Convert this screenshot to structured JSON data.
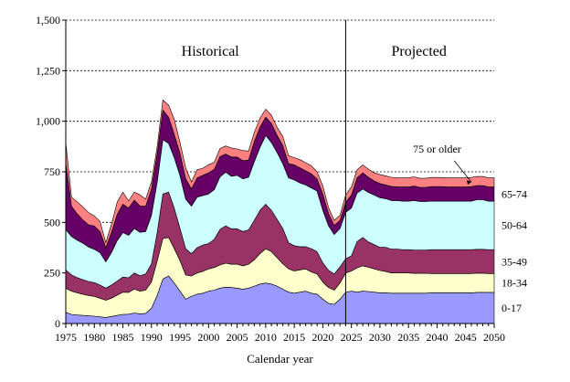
{
  "chart_data": {
    "type": "area",
    "stacked": true,
    "title": "",
    "xlabel": "Calendar year",
    "ylabel": "",
    "xlim": [
      1975,
      2050
    ],
    "ylim": [
      0,
      1500
    ],
    "grid": "horizontal dashed",
    "x_ticks": [
      1975,
      1980,
      1985,
      1990,
      1995,
      2000,
      2005,
      2010,
      2015,
      2020,
      2025,
      2030,
      2035,
      2040,
      2045,
      2050
    ],
    "y_ticks": [
      0,
      250,
      500,
      750,
      1000,
      1250,
      1500
    ],
    "y_tick_labels": [
      "0",
      "250",
      "500",
      "750",
      "1,000",
      "1,250",
      "1,500"
    ],
    "divider_year": 2024,
    "regions": [
      {
        "label": "Historical"
      },
      {
        "label": "Projected"
      }
    ],
    "x": [
      1975,
      1976,
      1977,
      1978,
      1979,
      1980,
      1981,
      1982,
      1983,
      1984,
      1985,
      1986,
      1987,
      1988,
      1989,
      1990,
      1991,
      1992,
      1993,
      1994,
      1995,
      1996,
      1997,
      1998,
      1999,
      2000,
      2001,
      2002,
      2003,
      2004,
      2005,
      2006,
      2007,
      2008,
      2009,
      2010,
      2011,
      2012,
      2013,
      2014,
      2015,
      2016,
      2017,
      2018,
      2019,
      2020,
      2021,
      2022,
      2023,
      2024,
      2025,
      2026,
      2027,
      2028,
      2029,
      2030,
      2031,
      2032,
      2033,
      2034,
      2035,
      2036,
      2037,
      2038,
      2039,
      2040,
      2041,
      2042,
      2043,
      2044,
      2045,
      2046,
      2047,
      2048,
      2049,
      2050
    ],
    "series": [
      {
        "name": "0-17",
        "color": "#9999ff",
        "values": [
          55,
          45,
          42,
          40,
          38,
          36,
          33,
          30,
          35,
          40,
          45,
          46,
          52,
          48,
          50,
          75,
          140,
          220,
          235,
          200,
          160,
          120,
          135,
          145,
          150,
          160,
          165,
          175,
          180,
          178,
          175,
          170,
          175,
          185,
          195,
          200,
          195,
          185,
          170,
          155,
          150,
          155,
          160,
          150,
          145,
          120,
          100,
          95,
          120,
          155,
          160,
          155,
          160,
          158,
          155,
          152,
          152,
          150,
          150,
          150,
          150,
          150,
          150,
          150,
          152,
          152,
          152,
          152,
          152,
          152,
          152,
          152,
          154,
          154,
          154,
          154
        ]
      },
      {
        "name": "18-34",
        "color": "#ffffcc",
        "values": [
          120,
          115,
          110,
          105,
          100,
          98,
          92,
          85,
          90,
          100,
          110,
          108,
          118,
          112,
          115,
          130,
          170,
          200,
          190,
          170,
          150,
          120,
          100,
          105,
          108,
          110,
          112,
          115,
          118,
          115,
          118,
          115,
          118,
          130,
          150,
          170,
          160,
          140,
          125,
          115,
          110,
          110,
          110,
          105,
          100,
          85,
          78,
          70,
          80,
          95,
          100,
          120,
          125,
          120,
          115,
          110,
          105,
          100,
          100,
          100,
          100,
          98,
          98,
          98,
          95,
          95,
          95,
          95,
          95,
          95,
          95,
          95,
          95,
          95,
          93,
          93
        ]
      },
      {
        "name": "35-49",
        "color": "#993366",
        "values": [
          90,
          80,
          75,
          72,
          70,
          68,
          65,
          60,
          65,
          70,
          75,
          72,
          80,
          76,
          80,
          90,
          140,
          220,
          225,
          200,
          160,
          130,
          110,
          125,
          130,
          125,
          140,
          175,
          185,
          175,
          175,
          170,
          170,
          195,
          215,
          220,
          205,
          190,
          175,
          130,
          125,
          115,
          110,
          115,
          110,
          95,
          85,
          80,
          80,
          70,
          75,
          130,
          140,
          125,
          120,
          115,
          120,
          118,
          118,
          115,
          115,
          115,
          115,
          115,
          118,
          118,
          118,
          118,
          118,
          118,
          118,
          118,
          118,
          118,
          118,
          118
        ]
      },
      {
        "name": "50-64",
        "color": "#ccffff",
        "values": [
          200,
          190,
          185,
          180,
          170,
          165,
          160,
          130,
          160,
          200,
          220,
          210,
          220,
          215,
          210,
          240,
          250,
          270,
          240,
          250,
          260,
          245,
          235,
          250,
          245,
          245,
          245,
          260,
          265,
          260,
          265,
          260,
          260,
          290,
          310,
          340,
          335,
          330,
          320,
          320,
          325,
          315,
          305,
          300,
          300,
          260,
          220,
          195,
          190,
          230,
          235,
          240,
          240,
          245,
          245,
          245,
          240,
          240,
          240,
          240,
          240,
          245,
          240,
          240,
          240,
          240,
          240,
          240,
          240,
          240,
          240,
          240,
          245,
          245,
          240,
          240
        ]
      },
      {
        "name": "65-74",
        "color": "#660066",
        "values": [
          330,
          150,
          130,
          115,
          110,
          115,
          105,
          70,
          100,
          130,
          140,
          135,
          140,
          130,
          125,
          130,
          140,
          145,
          130,
          115,
          110,
          100,
          85,
          95,
          100,
          105,
          100,
          100,
          90,
          95,
          90,
          90,
          85,
          100,
          100,
          90,
          95,
          85,
          90,
          70,
          75,
          75,
          70,
          70,
          60,
          80,
          60,
          45,
          40,
          50,
          65,
          75,
          80,
          75,
          70,
          70,
          68,
          70,
          68,
          70,
          70,
          72,
          70,
          70,
          72,
          72,
          72,
          70,
          70,
          70,
          70,
          72,
          70,
          70,
          70,
          70
        ]
      },
      {
        "name": "75 or older",
        "color": "#ff8080",
        "values": [
          100,
          45,
          60,
          65,
          60,
          50,
          50,
          25,
          40,
          60,
          60,
          35,
          40,
          55,
          35,
          35,
          35,
          50,
          60,
          75,
          55,
          55,
          35,
          40,
          35,
          40,
          35,
          40,
          40,
          45,
          40,
          50,
          45,
          45,
          45,
          40,
          40,
          40,
          45,
          40,
          35,
          40,
          40,
          40,
          35,
          40,
          30,
          25,
          25,
          35,
          40,
          40,
          40,
          40,
          40,
          45,
          45,
          45,
          45,
          45,
          45,
          45,
          45,
          45,
          45,
          45,
          45,
          45,
          45,
          45,
          45,
          45,
          45,
          45,
          45,
          45
        ]
      }
    ],
    "series_labels": [
      {
        "series": "0-17",
        "text": "0-17"
      },
      {
        "series": "18-34",
        "text": "18-34"
      },
      {
        "series": "35-49",
        "text": "35-49"
      },
      {
        "series": "50-64",
        "text": "50-64"
      },
      {
        "series": "65-74",
        "text": "65-74"
      },
      {
        "series": "75 or older",
        "text": "75 or older"
      }
    ]
  }
}
